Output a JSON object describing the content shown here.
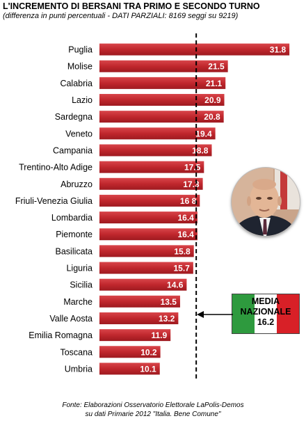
{
  "chart_data": {
    "type": "bar",
    "orientation": "horizontal",
    "title": "L'INCREMENTO DI BERSANI TRA PRIMO E SECONDO TURNO",
    "subtitle": "(differenza in punti percentuali - DATI PARZIALI: 8169 seggi su 9219)",
    "categories": [
      "Puglia",
      "Molise",
      "Calabria",
      "Lazio",
      "Sardegna",
      "Veneto",
      "Campania",
      "Trentino-Alto Adige",
      "Abruzzo",
      "Friuli-Venezia Giulia",
      "Lombardia",
      "Piemonte",
      "Basilicata",
      "Liguria",
      "Sicilia",
      "Marche",
      "Valle Aosta",
      "Emilia Romagna",
      "Toscana",
      "Umbria"
    ],
    "values": [
      31.8,
      21.5,
      21.1,
      20.9,
      20.8,
      19.4,
      18.8,
      17.5,
      17.3,
      16.8,
      16.4,
      16.4,
      15.8,
      15.7,
      14.6,
      13.5,
      13.2,
      11.9,
      10.2,
      10.1
    ],
    "value_labels": [
      "31.8",
      "21.5",
      "21.1",
      "20.9",
      "20.8",
      "19.4",
      "18.8",
      "17.5",
      "17.3",
      "16 8",
      "16.4",
      "16.4",
      "15.8",
      "15.7",
      "14.6",
      "13.5",
      "13.2",
      "11.9",
      "10.2",
      "10.1"
    ],
    "bar_color": "#c0272d",
    "xlim": [
      0,
      32.6
    ],
    "reference_line": {
      "value": 16.2,
      "style": "dashed"
    },
    "grid": false,
    "legend": "none"
  },
  "annotation": {
    "line1": "MEDIA",
    "line2": "NAZIONALE",
    "line3": "16.2",
    "flag_colors": [
      "#2e9a3e",
      "#ffffff",
      "#d82027"
    ]
  },
  "source": {
    "line1": "Fonte: Elaborazioni Osservatorio Elettorale LaPolis-Demos",
    "line2": "su dati Primarie 2012 \"Italia. Bene Comune\""
  }
}
